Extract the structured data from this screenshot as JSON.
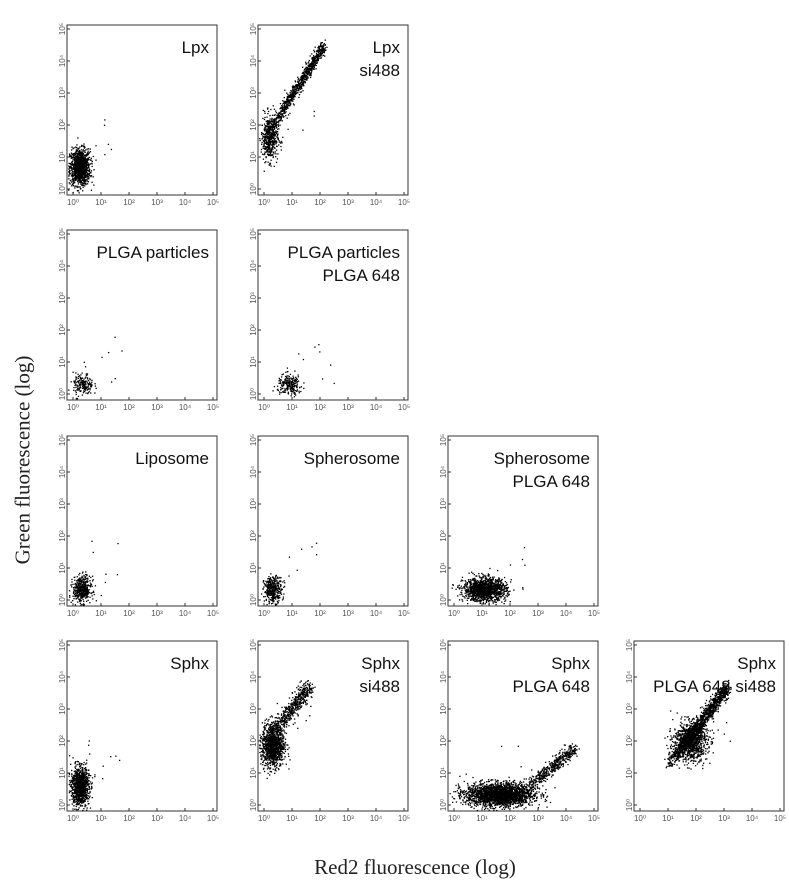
{
  "ylabel": "Green fluorescence (log)",
  "xlabel": "Red2 fluorescence (log)",
  "x_tick_labels": [
    "10⁰",
    "10¹",
    "10²",
    "10³",
    "10⁴",
    "10⁵"
  ],
  "y_tick_labels": [
    "10⁰",
    "10¹",
    "10²",
    "10³",
    "10⁴",
    "10⁵"
  ],
  "colors": {
    "dots": "#000000",
    "frame": "#333333",
    "background": "#ffffff"
  },
  "chart_data": [
    {
      "type": "scatter",
      "title": "Lpx",
      "row": 1,
      "col": 1,
      "xscale": "log",
      "yscale": "log",
      "xlim": [
        1,
        100000
      ],
      "ylim": [
        1,
        100000
      ],
      "clusters": [
        {
          "x": 1.7,
          "y": 5,
          "spread_x": 0.18,
          "spread_y": 0.28,
          "n": 1100
        }
      ]
    },
    {
      "type": "scatter",
      "title": "Lpx\nsi488",
      "row": 1,
      "col": 2,
      "xscale": "log",
      "yscale": "log",
      "xlim": [
        1,
        100000
      ],
      "ylim": [
        1,
        100000
      ],
      "clusters": [
        {
          "x": 1.5,
          "y": 40,
          "spread_x": 0.15,
          "spread_y": 0.35,
          "n": 500
        }
      ],
      "trends": [
        {
          "from": [
            2,
            100
          ],
          "to": [
            130,
            30000
          ],
          "width": 0.08,
          "n": 800
        }
      ]
    },
    {
      "type": "scatter",
      "title": "PLGA  particles",
      "row": 2,
      "col": 1,
      "xscale": "log",
      "yscale": "log",
      "xlim": [
        1,
        100000
      ],
      "ylim": [
        1,
        100000
      ],
      "clusters": [
        {
          "x": 2.2,
          "y": 2,
          "spread_x": 0.18,
          "spread_y": 0.18,
          "n": 180
        }
      ]
    },
    {
      "type": "scatter",
      "title": "PLGA particles\nPLGA 648",
      "row": 2,
      "col": 2,
      "xscale": "log",
      "yscale": "log",
      "xlim": [
        1,
        100000
      ],
      "ylim": [
        1,
        100000
      ],
      "clusters": [
        {
          "x": 8,
          "y": 2,
          "spread_x": 0.22,
          "spread_y": 0.16,
          "n": 220
        }
      ]
    },
    {
      "type": "scatter",
      "title": "Liposome",
      "row": 3,
      "col": 1,
      "xscale": "log",
      "yscale": "log",
      "xlim": [
        1,
        100000
      ],
      "ylim": [
        1,
        100000
      ],
      "clusters": [
        {
          "x": 2,
          "y": 2.2,
          "spread_x": 0.16,
          "spread_y": 0.2,
          "n": 450
        }
      ]
    },
    {
      "type": "scatter",
      "title": "Spherosome",
      "row": 3,
      "col": 2,
      "xscale": "log",
      "yscale": "log",
      "xlim": [
        1,
        100000
      ],
      "ylim": [
        1,
        100000
      ],
      "clusters": [
        {
          "x": 2,
          "y": 2.2,
          "spread_x": 0.16,
          "spread_y": 0.2,
          "n": 350
        }
      ]
    },
    {
      "type": "scatter",
      "title": "Spherosome\nPLGA 648",
      "row": 3,
      "col": 3,
      "xscale": "log",
      "yscale": "log",
      "xlim": [
        1,
        100000
      ],
      "ylim": [
        1,
        100000
      ],
      "clusters": [
        {
          "x": 12,
          "y": 2.2,
          "spread_x": 0.38,
          "spread_y": 0.18,
          "n": 1300
        }
      ]
    },
    {
      "type": "scatter",
      "title": "Sphx",
      "row": 4,
      "col": 1,
      "xscale": "log",
      "yscale": "log",
      "xlim": [
        1,
        100000
      ],
      "ylim": [
        1,
        100000
      ],
      "clusters": [
        {
          "x": 1.7,
          "y": 4,
          "spread_x": 0.16,
          "spread_y": 0.3,
          "n": 1000
        }
      ]
    },
    {
      "type": "scatter",
      "title": "Sphx\nsi488",
      "row": 4,
      "col": 2,
      "xscale": "log",
      "yscale": "log",
      "xlim": [
        1,
        100000
      ],
      "ylim": [
        1,
        100000
      ],
      "clusters": [
        {
          "x": 2,
          "y": 80,
          "spread_x": 0.2,
          "spread_y": 0.35,
          "n": 1100
        }
      ],
      "trends": [
        {
          "from": [
            3,
            300
          ],
          "to": [
            40,
            5000
          ],
          "width": 0.12,
          "n": 450
        }
      ]
    },
    {
      "type": "scatter",
      "title": "Sphx\nPLGA 648",
      "row": 4,
      "col": 3,
      "xscale": "log",
      "yscale": "log",
      "xlim": [
        1,
        100000
      ],
      "ylim": [
        1,
        100000
      ],
      "clusters": [
        {
          "x": 40,
          "y": 2.2,
          "spread_x": 0.6,
          "spread_y": 0.18,
          "n": 2200
        }
      ],
      "trends": [
        {
          "from": [
            300,
            3
          ],
          "to": [
            20000,
            60
          ],
          "width": 0.1,
          "n": 450
        }
      ]
    },
    {
      "type": "scatter",
      "title": "Sphx\nPLGA 648 si488",
      "row": 4,
      "col": 4,
      "xscale": "log",
      "yscale": "log",
      "xlim": [
        1,
        100000
      ],
      "ylim": [
        1,
        100000
      ],
      "clusters": [
        {
          "x": 60,
          "y": 100,
          "spread_x": 0.3,
          "spread_y": 0.3,
          "n": 900
        }
      ],
      "trends": [
        {
          "from": [
            10,
            20
          ],
          "to": [
            1200,
            4500
          ],
          "width": 0.1,
          "n": 1200
        }
      ]
    }
  ]
}
